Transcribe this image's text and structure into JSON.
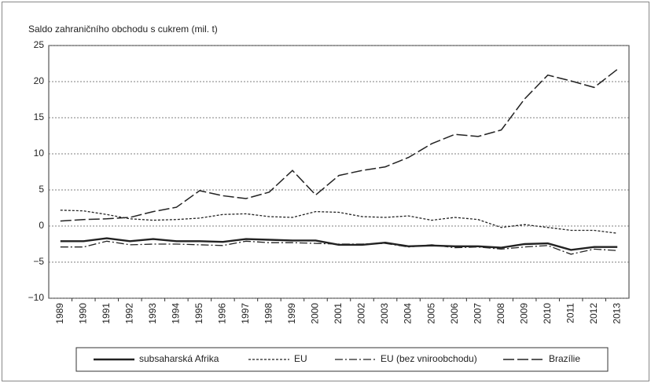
{
  "chart_data": {
    "type": "line",
    "title": "Saldo zahraničního obchodu s cukrem (mil. t)",
    "categories": [
      "1989",
      "1990",
      "1991",
      "1992",
      "1993",
      "1994",
      "1995",
      "1996",
      "1997",
      "1998",
      "1999",
      "2000",
      "2001",
      "2002",
      "2003",
      "2004",
      "2005",
      "2006",
      "2007",
      "2008",
      "2009",
      "2010",
      "2011",
      "2012",
      "2013"
    ],
    "ylim": [
      -10,
      25
    ],
    "yticks": [
      {
        "value": -10,
        "label": "−10"
      },
      {
        "value": -5,
        "label": "−5"
      },
      0,
      5,
      10,
      15,
      20,
      25
    ],
    "grid": true,
    "legend": "bottom",
    "series": [
      {
        "name": "subsaharská Afrika",
        "color": "#222222",
        "dash": "solid",
        "values": [
          -2.1,
          -2.1,
          -1.7,
          -2.1,
          -1.8,
          -2.1,
          -2.1,
          -2.2,
          -1.8,
          -1.9,
          -2.0,
          -2.0,
          -2.6,
          -2.6,
          -2.3,
          -2.8,
          -2.7,
          -2.8,
          -2.8,
          -3.0,
          -2.5,
          -2.4,
          -3.3,
          -2.9,
          -2.9
        ]
      },
      {
        "name": "EU",
        "color": "#222222",
        "dash": "dotted",
        "values": [
          2.2,
          2.1,
          1.6,
          1.0,
          0.8,
          0.9,
          1.1,
          1.6,
          1.7,
          1.3,
          1.2,
          2.0,
          1.9,
          1.3,
          1.2,
          1.4,
          0.8,
          1.2,
          0.9,
          -0.2,
          0.2,
          -0.2,
          -0.6,
          -0.6,
          -1.0
        ]
      },
      {
        "name": "EU (bez vniroobchodu)",
        "color": "#222222",
        "dash": "dashdot",
        "values": [
          -2.9,
          -2.9,
          -2.1,
          -2.6,
          -2.5,
          -2.5,
          -2.6,
          -2.7,
          -2.1,
          -2.3,
          -2.3,
          -2.4,
          -2.5,
          -2.5,
          -2.4,
          -2.9,
          -2.6,
          -3.0,
          -2.9,
          -3.2,
          -2.9,
          -2.7,
          -3.9,
          -3.2,
          -3.4
        ]
      },
      {
        "name": "Brazílie",
        "color": "#222222",
        "dash": "dashed",
        "values": [
          0.7,
          0.9,
          1.0,
          1.2,
          2.0,
          2.6,
          4.9,
          4.2,
          3.8,
          4.7,
          7.7,
          4.3,
          7.0,
          7.7,
          8.2,
          9.5,
          11.4,
          12.7,
          12.4,
          13.3,
          17.6,
          20.9,
          20.1,
          19.2,
          21.7
        ]
      }
    ]
  }
}
